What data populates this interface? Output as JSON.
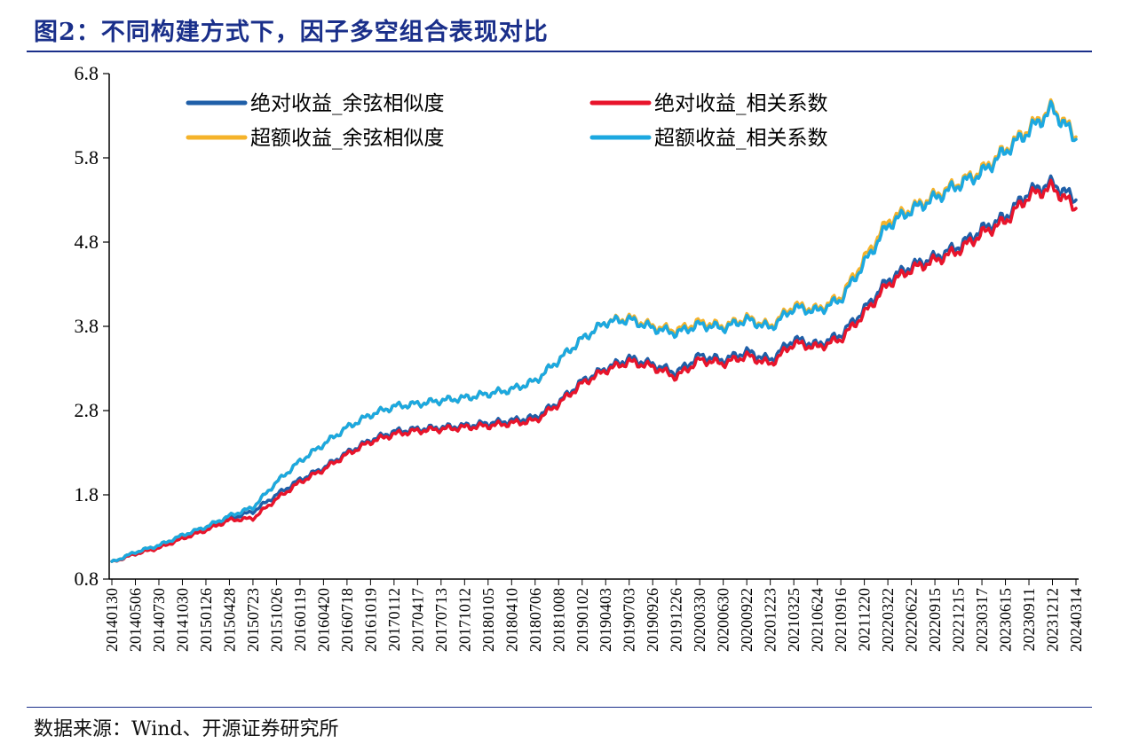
{
  "figure": {
    "title": "图2：不同构建方式下，因子多空组合表现对比",
    "source": "数据来源：Wind、开源证券研究所"
  },
  "chart_data": {
    "type": "line",
    "ylim": [
      0.8,
      6.8
    ],
    "yticks": [
      "6.8",
      "5.8",
      "4.8",
      "3.8",
      "2.8",
      "1.8",
      "0.8"
    ],
    "x_tick_labels": [
      "20140130",
      "20140506",
      "20140730",
      "20141030",
      "20150126",
      "20150428",
      "20150723",
      "20151026",
      "20160119",
      "20160420",
      "20160718",
      "20161019",
      "20170112",
      "20170417",
      "20170713",
      "20171012",
      "20180105",
      "20180410",
      "20180706",
      "20181008",
      "20190102",
      "20190403",
      "20190703",
      "20190926",
      "20191226",
      "20200330",
      "20200630",
      "20200922",
      "20201223",
      "20210325",
      "20210624",
      "20210916",
      "20211220",
      "20220322",
      "20220622",
      "20220915",
      "20221215",
      "20230317",
      "20230615",
      "20230911",
      "20231212",
      "20240314"
    ],
    "legend_position": "top",
    "series": [
      {
        "name": "绝对收益_余弦相似度",
        "color": "#1f5fa8",
        "values": [
          1.0,
          1.1,
          1.18,
          1.3,
          1.4,
          1.52,
          1.6,
          1.8,
          1.98,
          2.12,
          2.3,
          2.45,
          2.55,
          2.58,
          2.6,
          2.62,
          2.65,
          2.68,
          2.72,
          2.9,
          3.15,
          3.3,
          3.42,
          3.35,
          3.25,
          3.45,
          3.4,
          3.5,
          3.4,
          3.65,
          3.58,
          3.7,
          4.0,
          4.35,
          4.52,
          4.62,
          4.75,
          4.95,
          5.1,
          5.4,
          5.5,
          5.3
        ]
      },
      {
        "name": "绝对收益_相关系数",
        "color": "#e8142b",
        "values": [
          1.0,
          1.1,
          1.17,
          1.28,
          1.38,
          1.5,
          1.52,
          1.75,
          1.95,
          2.1,
          2.28,
          2.43,
          2.52,
          2.56,
          2.58,
          2.6,
          2.62,
          2.65,
          2.68,
          2.88,
          3.12,
          3.28,
          3.38,
          3.32,
          3.2,
          3.4,
          3.36,
          3.45,
          3.35,
          3.6,
          3.55,
          3.65,
          3.95,
          4.3,
          4.48,
          4.58,
          4.7,
          4.9,
          5.05,
          5.35,
          5.45,
          5.2
        ]
      },
      {
        "name": "超额收益_余弦相似度",
        "color": "#f5b32a",
        "values": [
          1.0,
          1.12,
          1.2,
          1.32,
          1.42,
          1.55,
          1.65,
          1.95,
          2.2,
          2.4,
          2.6,
          2.75,
          2.85,
          2.88,
          2.92,
          2.95,
          3.0,
          3.05,
          3.15,
          3.4,
          3.65,
          3.85,
          3.9,
          3.8,
          3.75,
          3.85,
          3.8,
          3.9,
          3.8,
          4.05,
          4.0,
          4.15,
          4.6,
          5.05,
          5.2,
          5.35,
          5.5,
          5.65,
          5.9,
          6.15,
          6.4,
          6.05
        ]
      },
      {
        "name": "超额收益_相关系数",
        "color": "#1ca8e0",
        "values": [
          1.0,
          1.12,
          1.2,
          1.32,
          1.42,
          1.55,
          1.65,
          1.95,
          2.2,
          2.4,
          2.6,
          2.75,
          2.85,
          2.88,
          2.92,
          2.95,
          3.0,
          3.05,
          3.15,
          3.4,
          3.65,
          3.85,
          3.88,
          3.78,
          3.72,
          3.82,
          3.78,
          3.88,
          3.78,
          4.02,
          3.98,
          4.12,
          4.55,
          5.0,
          5.18,
          5.32,
          5.48,
          5.62,
          5.88,
          6.12,
          6.38,
          6.02
        ]
      }
    ]
  }
}
